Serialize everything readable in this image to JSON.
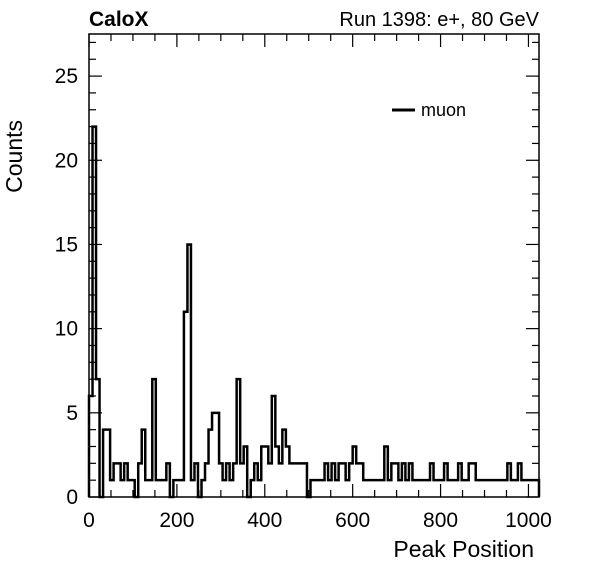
{
  "header": {
    "left_title": "CaloX",
    "right_title": "Run 1398: e+, 80 GeV"
  },
  "chart_data": {
    "type": "histogram",
    "title": "",
    "xlabel": "Peak Position",
    "ylabel": "Counts",
    "xlim": [
      0,
      1024
    ],
    "ylim": [
      0,
      27.5
    ],
    "xticks": [
      "0",
      "200",
      "400",
      "600",
      "800",
      "1000"
    ],
    "yticks": [
      "0",
      "5",
      "10",
      "15",
      "20",
      "25"
    ],
    "grid": false,
    "legend": {
      "position": "top-right",
      "entries": [
        "muon"
      ]
    },
    "bin_width": 8,
    "series": [
      {
        "name": "muon",
        "color": "#000000",
        "x_start": 0,
        "values": [
          6,
          22,
          7,
          0,
          4,
          4,
          1,
          2,
          2,
          1,
          2,
          1,
          1,
          0,
          2,
          4,
          1,
          1,
          7,
          1,
          1,
          1,
          2,
          0,
          1,
          1,
          1,
          11,
          15,
          1,
          2,
          0,
          1,
          2,
          4,
          5,
          5,
          2,
          1,
          2,
          1,
          2,
          7,
          2,
          3,
          0,
          1,
          2,
          1,
          3,
          3,
          2,
          6,
          3,
          2,
          4,
          3,
          2,
          2,
          2,
          2,
          2,
          0,
          1,
          1,
          1,
          1,
          2,
          1,
          2,
          1,
          2,
          2,
          1,
          2,
          3,
          2,
          2,
          1,
          1,
          1,
          1,
          1,
          1,
          3,
          1,
          2,
          2,
          1,
          2,
          1,
          2,
          1,
          1,
          1,
          1,
          1,
          2,
          1,
          1,
          1,
          2,
          1,
          1,
          1,
          2,
          1,
          1,
          2,
          2,
          1,
          1,
          1,
          1,
          1,
          1,
          1,
          1,
          1,
          2,
          1,
          1,
          2,
          1,
          1,
          1,
          1,
          1
        ]
      }
    ]
  }
}
